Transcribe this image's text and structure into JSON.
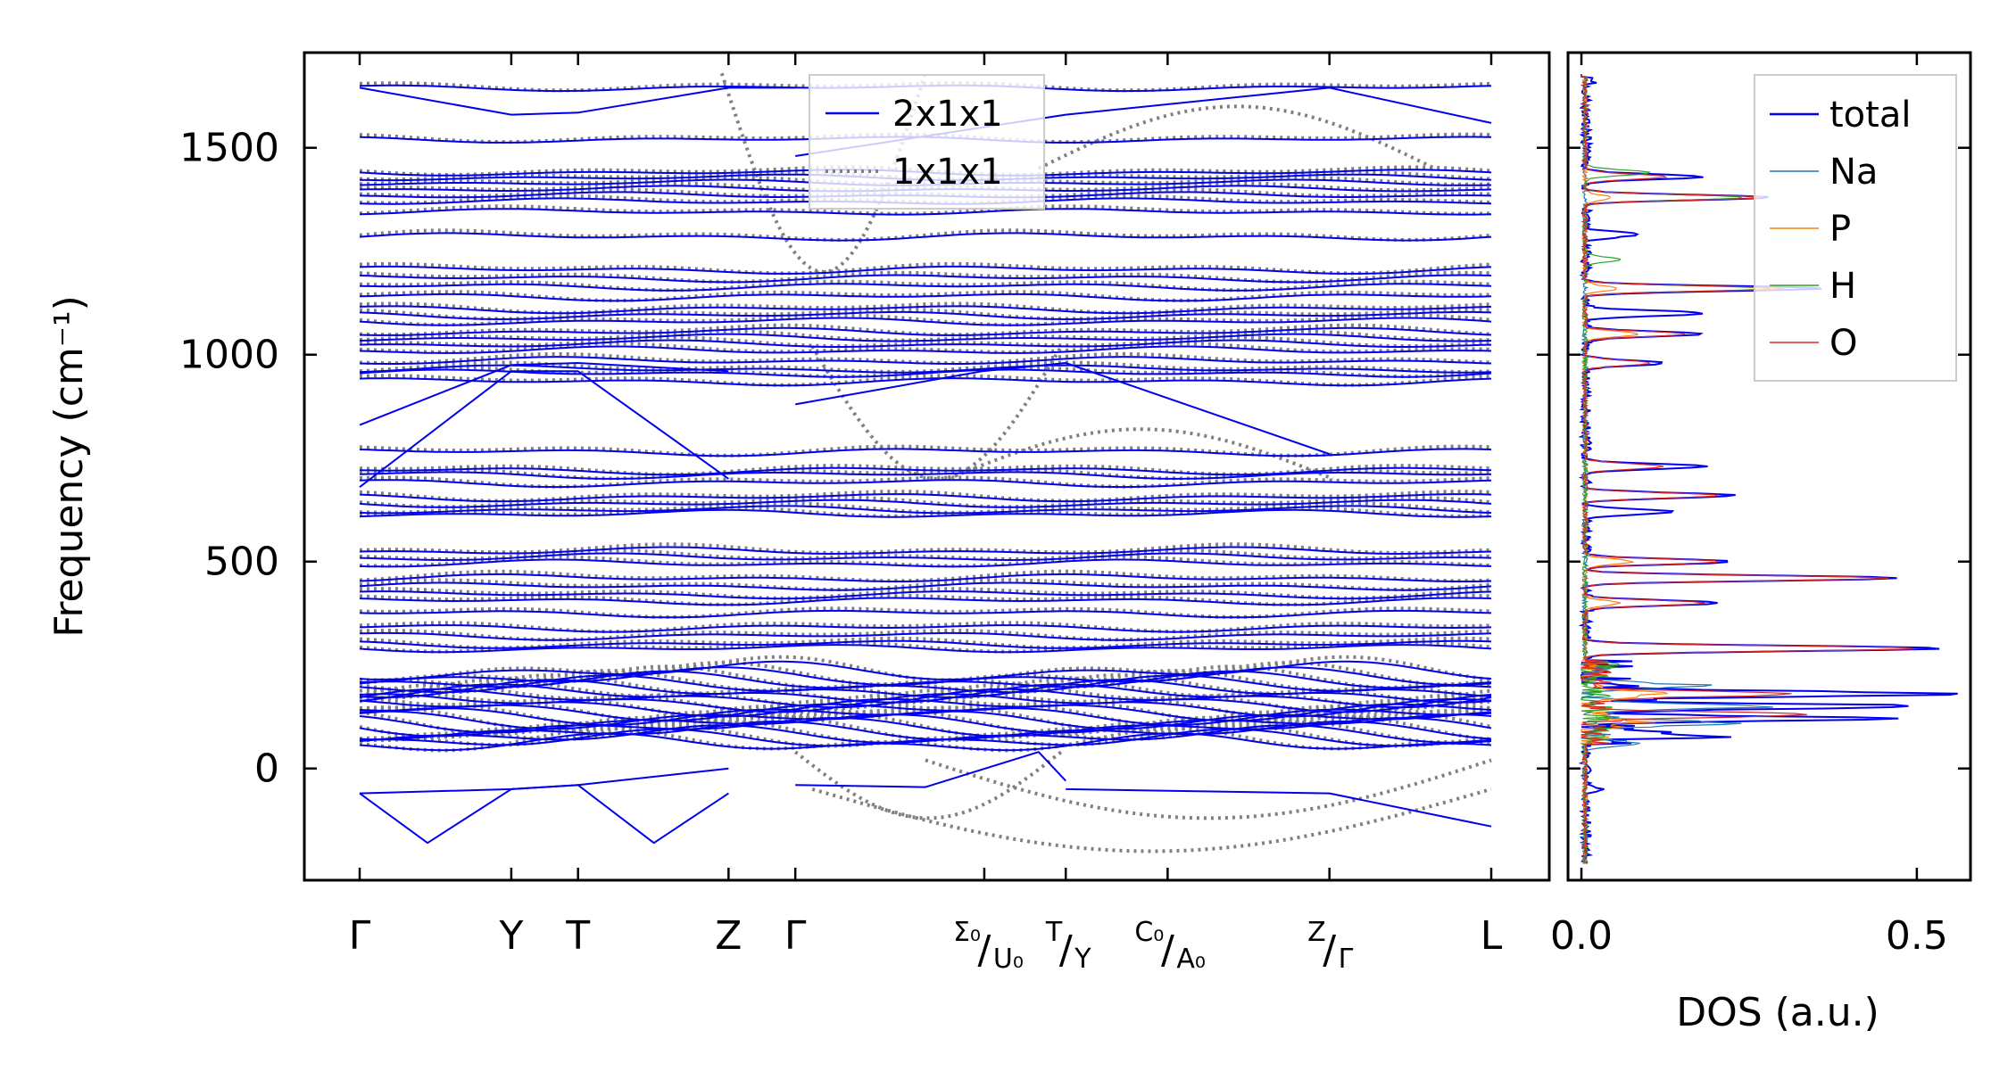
{
  "chart_data": [
    {
      "type": "line",
      "title": "",
      "xlabel": "",
      "ylabel": "Frequency (cm⁻¹)",
      "ylim": [
        -270,
        1730
      ],
      "yticks": [
        0,
        500,
        1000,
        1500
      ],
      "grid": false,
      "legend_placement": "top-center",
      "xticks": [
        {
          "x": 0.0,
          "label": "Γ"
        },
        {
          "x": 0.134,
          "label": "Y"
        },
        {
          "x": 0.193,
          "label": "T"
        },
        {
          "x": 0.326,
          "label": "Z"
        },
        {
          "x": 0.385,
          "label": "Γ"
        },
        {
          "x": 0.552,
          "label": "Σ₀|U₀"
        },
        {
          "x": 0.624,
          "label": "T|Y"
        },
        {
          "x": 0.714,
          "label": "C₀|A₀"
        },
        {
          "x": 0.857,
          "label": "Z|Γ"
        },
        {
          "x": 1.0,
          "label": "L"
        }
      ],
      "series": [
        {
          "name": "2x1x1",
          "color": "#0000ee",
          "style": "solid"
        },
        {
          "name": "1x1x1",
          "color": "#808080",
          "style": "dotted"
        }
      ],
      "flat_levels": [
        1645,
        1520,
        1440,
        1428,
        1415,
        1400,
        1385,
        1370,
        1345,
        1285,
        1205,
        1185,
        1165,
        1140,
        1110,
        1095,
        1080,
        1055,
        1040,
        1025,
        1010,
        985,
        965,
        955,
        935,
        765,
        720,
        710,
        690,
        655,
        640,
        625,
        615,
        525,
        510,
        495,
        460,
        440,
        420,
        405,
        375,
        340,
        320,
        300,
        290,
        235,
        220,
        210,
        200,
        190,
        180,
        170,
        160,
        150,
        140,
        130,
        120,
        110,
        100,
        90,
        80,
        70,
        60
      ],
      "dispersive_bands": [
        {
          "x": [
            0.0,
            0.134,
            0.193,
            0.26,
            0.326
          ],
          "y": [
            -60,
            -50,
            -40,
            -180,
            -60
          ]
        },
        {
          "x": [
            0.0,
            0.06,
            0.134,
            0.193,
            0.326
          ],
          "y": [
            -60,
            -180,
            -50,
            -40,
            0
          ]
        },
        {
          "x": [
            0.0,
            0.134,
            0.193,
            0.326
          ],
          "y": [
            680,
            960,
            960,
            700
          ]
        },
        {
          "x": [
            0.0,
            0.134,
            0.193,
            0.326
          ],
          "y": [
            830,
            975,
            980,
            960
          ]
        },
        {
          "x": [
            0.0,
            0.134,
            0.193,
            0.326,
            0.385
          ],
          "y": [
            1645,
            1580,
            1585,
            1645,
            1645
          ]
        },
        {
          "x": [
            0.385,
            0.624,
            0.857,
            1.0
          ],
          "y": [
            1480,
            1580,
            1645,
            1560
          ]
        },
        {
          "x": [
            0.385,
            0.55,
            0.624,
            0.857
          ],
          "y": [
            880,
            960,
            980,
            760
          ]
        },
        {
          "x": [
            0.385,
            0.5,
            0.6,
            0.624
          ],
          "y": [
            -40,
            -45,
            40,
            -30
          ]
        },
        {
          "x": [
            0.624,
            0.857,
            1.0
          ],
          "y": [
            -50,
            -60,
            -140
          ]
        }
      ]
    },
    {
      "type": "line",
      "title": "",
      "xlabel": "DOS (a.u.)",
      "ylabel": "",
      "xlim": [
        -0.02,
        0.58
      ],
      "ylim": [
        -270,
        1730
      ],
      "xticks": [
        0.0,
        0.5
      ],
      "legend_placement": "top-right",
      "series": [
        {
          "name": "total",
          "color": "#0000ee",
          "peaks": [
            [
              1660,
              0.01
            ],
            [
              1430,
              0.17
            ],
            [
              1380,
              0.28
            ],
            [
              1290,
              0.08
            ],
            [
              1160,
              0.36
            ],
            [
              1100,
              0.18
            ],
            [
              1050,
              0.17
            ],
            [
              980,
              0.12
            ],
            [
              730,
              0.18
            ],
            [
              660,
              0.22
            ],
            [
              620,
              0.13
            ],
            [
              500,
              0.22
            ],
            [
              460,
              0.47
            ],
            [
              400,
              0.2
            ],
            [
              290,
              0.53
            ],
            [
              180,
              0.55
            ],
            [
              150,
              0.49
            ],
            [
              120,
              0.41
            ],
            [
              80,
              0.18
            ],
            [
              -50,
              0.02
            ]
          ]
        },
        {
          "name": "Na",
          "color": "#1f77b4",
          "peaks": [
            [
              200,
              0.16
            ],
            [
              150,
              0.26
            ],
            [
              110,
              0.2
            ],
            [
              60,
              0.08
            ]
          ]
        },
        {
          "name": "P",
          "color": "#ff7f0e",
          "peaks": [
            [
              1380,
              0.04
            ],
            [
              1160,
              0.05
            ],
            [
              1050,
              0.08
            ],
            [
              500,
              0.07
            ],
            [
              400,
              0.05
            ],
            [
              180,
              0.1
            ],
            [
              110,
              0.07
            ]
          ]
        },
        {
          "name": "H",
          "color": "#2ca02c",
          "peaks": [
            [
              1380,
              0.24
            ],
            [
              1160,
              0.28
            ],
            [
              1440,
              0.1
            ],
            [
              1230,
              0.05
            ],
            [
              250,
              0.02
            ]
          ]
        },
        {
          "name": "O",
          "color": "#d62728",
          "peaks": [
            [
              1430,
              0.12
            ],
            [
              1380,
              0.27
            ],
            [
              1160,
              0.3
            ],
            [
              1050,
              0.15
            ],
            [
              980,
              0.1
            ],
            [
              730,
              0.12
            ],
            [
              660,
              0.2
            ],
            [
              500,
              0.2
            ],
            [
              460,
              0.45
            ],
            [
              400,
              0.18
            ],
            [
              290,
              0.5
            ],
            [
              180,
              0.3
            ],
            [
              130,
              0.33
            ]
          ]
        }
      ]
    }
  ]
}
